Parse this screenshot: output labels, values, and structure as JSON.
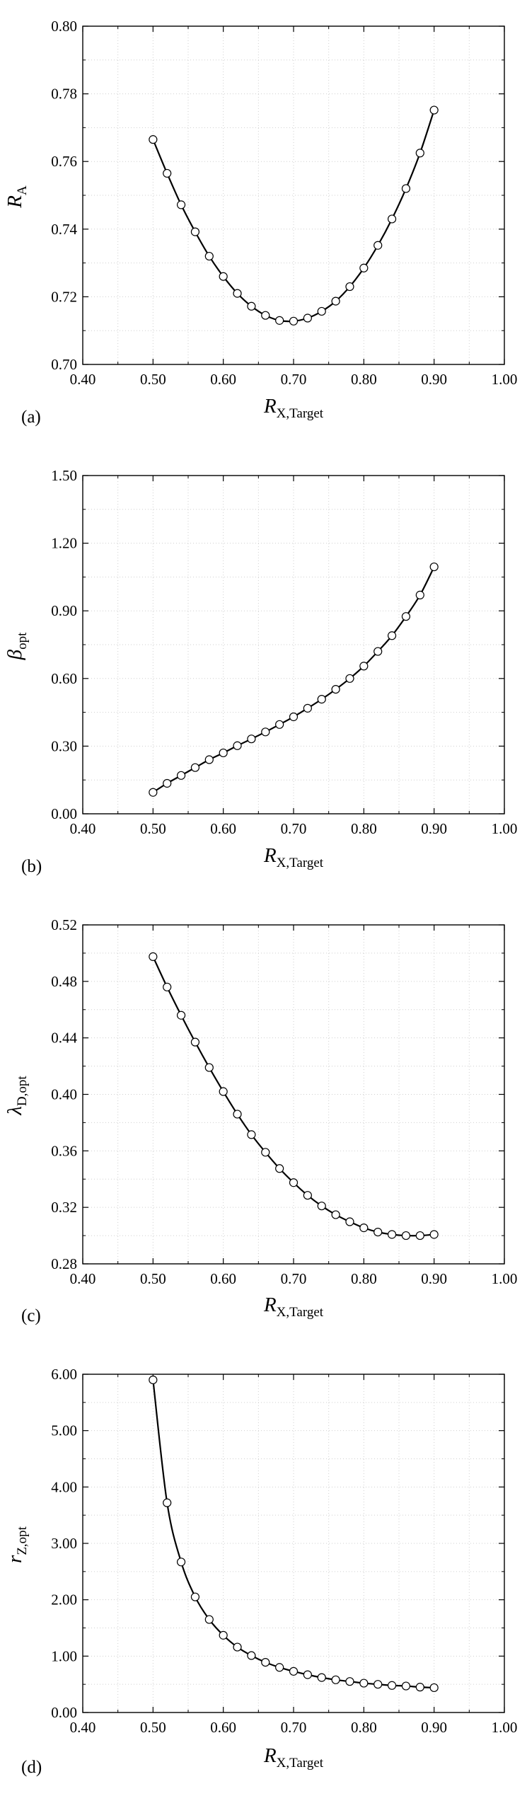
{
  "chart_data": [
    {
      "type": "line",
      "panel_label": "(a)",
      "xlabel": {
        "main": "R",
        "sub": "X,Target"
      },
      "ylabel": {
        "main": "R",
        "sub": "A"
      },
      "xlim": [
        0.4,
        1.0
      ],
      "ylim": [
        0.7,
        0.8
      ],
      "xticks": [
        "0.40",
        "0.50",
        "0.60",
        "0.70",
        "0.80",
        "0.90",
        "1.00"
      ],
      "yticks": [
        "0.70",
        "0.72",
        "0.74",
        "0.76",
        "0.78",
        "0.80"
      ],
      "grid": true,
      "marker": "open-circle",
      "series": [
        {
          "x": [
            0.5,
            0.52,
            0.54,
            0.56,
            0.58,
            0.6,
            0.62,
            0.64,
            0.66,
            0.68,
            0.7,
            0.72,
            0.74,
            0.76,
            0.78,
            0.8,
            0.82,
            0.84,
            0.86,
            0.88,
            0.9
          ],
          "y": [
            0.7665,
            0.7565,
            0.7472,
            0.7392,
            0.732,
            0.726,
            0.721,
            0.7172,
            0.7145,
            0.713,
            0.7128,
            0.7137,
            0.7157,
            0.7187,
            0.723,
            0.7285,
            0.7352,
            0.743,
            0.752,
            0.7625,
            0.7752
          ]
        }
      ]
    },
    {
      "type": "line",
      "panel_label": "(b)",
      "xlabel": {
        "main": "R",
        "sub": "X,Target"
      },
      "ylabel": {
        "main": "β",
        "sub": "opt"
      },
      "xlim": [
        0.4,
        1.0
      ],
      "ylim": [
        0.0,
        1.5
      ],
      "xticks": [
        "0.40",
        "0.50",
        "0.60",
        "0.70",
        "0.80",
        "0.90",
        "1.00"
      ],
      "yticks": [
        "0.00",
        "0.30",
        "0.60",
        "0.90",
        "1.20",
        "1.50"
      ],
      "grid": true,
      "marker": "open-circle",
      "series": [
        {
          "x": [
            0.5,
            0.52,
            0.54,
            0.56,
            0.58,
            0.6,
            0.62,
            0.64,
            0.66,
            0.68,
            0.7,
            0.72,
            0.74,
            0.76,
            0.78,
            0.8,
            0.82,
            0.84,
            0.86,
            0.88,
            0.9
          ],
          "y": [
            0.095,
            0.135,
            0.17,
            0.205,
            0.24,
            0.27,
            0.302,
            0.332,
            0.363,
            0.396,
            0.43,
            0.468,
            0.508,
            0.552,
            0.6,
            0.655,
            0.72,
            0.79,
            0.875,
            0.97,
            1.095
          ]
        }
      ]
    },
    {
      "type": "line",
      "panel_label": "(c)",
      "xlabel": {
        "main": "R",
        "sub": "X,Target"
      },
      "ylabel": {
        "main": "λ",
        "sub": "D,opt"
      },
      "xlim": [
        0.4,
        1.0
      ],
      "ylim": [
        0.28,
        0.52
      ],
      "xticks": [
        "0.40",
        "0.50",
        "0.60",
        "0.70",
        "0.80",
        "0.90",
        "1.00"
      ],
      "yticks": [
        "0.28",
        "0.32",
        "0.36",
        "0.40",
        "0.44",
        "0.48",
        "0.52"
      ],
      "grid": true,
      "marker": "open-circle",
      "series": [
        {
          "x": [
            0.5,
            0.52,
            0.54,
            0.56,
            0.58,
            0.6,
            0.62,
            0.64,
            0.66,
            0.68,
            0.7,
            0.72,
            0.74,
            0.76,
            0.78,
            0.8,
            0.82,
            0.84,
            0.86,
            0.88,
            0.9
          ],
          "y": [
            0.4975,
            0.476,
            0.456,
            0.437,
            0.419,
            0.402,
            0.386,
            0.3715,
            0.359,
            0.3475,
            0.3375,
            0.3285,
            0.321,
            0.3148,
            0.3098,
            0.3055,
            0.3025,
            0.3008,
            0.3,
            0.3,
            0.3008
          ]
        }
      ]
    },
    {
      "type": "line",
      "panel_label": "(d)",
      "xlabel": {
        "main": "R",
        "sub": "X,Target"
      },
      "ylabel": {
        "main": "r",
        "sub": "Z,opt"
      },
      "xlim": [
        0.4,
        1.0
      ],
      "ylim": [
        0.0,
        6.0
      ],
      "xticks": [
        "0.40",
        "0.50",
        "0.60",
        "0.70",
        "0.80",
        "0.90",
        "1.00"
      ],
      "yticks": [
        "0.00",
        "1.00",
        "2.00",
        "3.00",
        "4.00",
        "5.00",
        "6.00"
      ],
      "grid": true,
      "marker": "open-circle",
      "series": [
        {
          "x": [
            0.5,
            0.52,
            0.54,
            0.56,
            0.58,
            0.6,
            0.62,
            0.64,
            0.66,
            0.68,
            0.7,
            0.72,
            0.74,
            0.76,
            0.78,
            0.8,
            0.82,
            0.84,
            0.86,
            0.88,
            0.9
          ],
          "y": [
            5.9,
            3.72,
            2.67,
            2.05,
            1.65,
            1.37,
            1.16,
            1.01,
            0.89,
            0.8,
            0.73,
            0.67,
            0.62,
            0.58,
            0.55,
            0.52,
            0.5,
            0.48,
            0.47,
            0.45,
            0.44
          ]
        }
      ]
    }
  ]
}
